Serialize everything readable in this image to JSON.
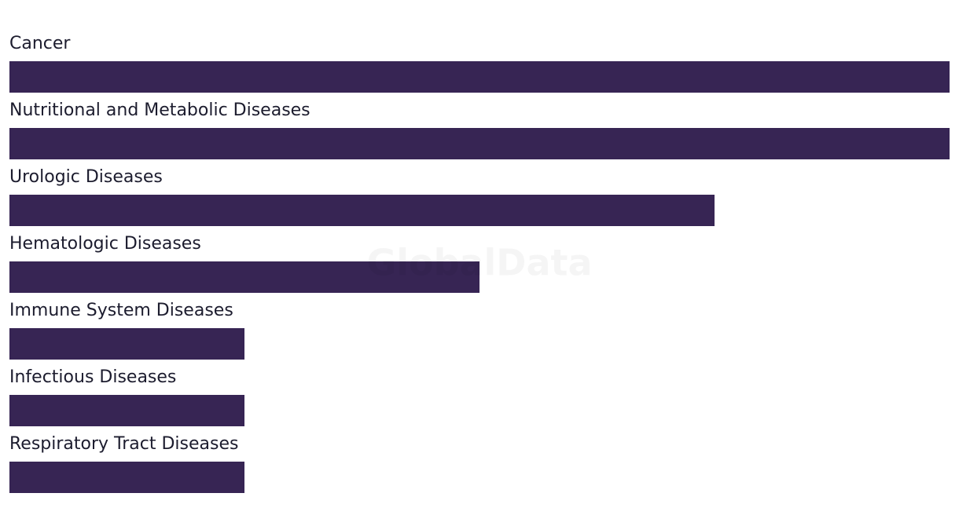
{
  "chart_data": {
    "type": "hbar",
    "watermark": "GlobalData",
    "categories": [
      "Cancer",
      "Nutritional and Metabolic Diseases",
      "Urologic Diseases",
      "Hematologic Diseases",
      "Immune System Diseases",
      "Infectious Diseases",
      "Respiratory Tract Diseases"
    ],
    "values": [
      4,
      4,
      3,
      2,
      1,
      1,
      1
    ],
    "color": "#372554",
    "xlim": [
      0,
      4
    ]
  }
}
